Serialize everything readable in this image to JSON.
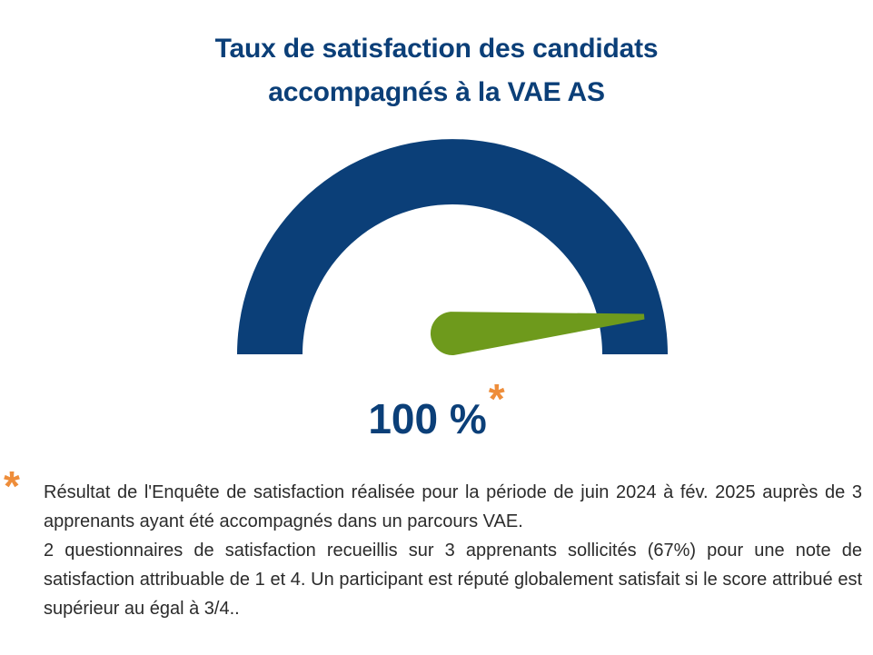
{
  "title": {
    "line1": "Taux de satisfaction des candidats",
    "line2": "accompagnés à la VAE AS"
  },
  "chart_data": {
    "type": "gauge",
    "value": 100,
    "min": 0,
    "max": 100,
    "unit": "%",
    "display_value": "100 %",
    "value_marker": "*",
    "colors": {
      "arc": "#0b3f78",
      "needle": "#6e9a1c",
      "asterisk": "#ee8d3a",
      "text": "#0b3f78"
    }
  },
  "footnote": {
    "marker": "*",
    "paragraph1": "Résultat de l'Enquête de satisfaction réalisée pour la période de juin 2024 à fév. 2025 auprès de 3 apprenants ayant été accompagnés dans un parcours VAE.",
    "paragraph2": "2 questionnaires de satisfaction recueillis sur 3 apprenants sollicités (67%) pour une note de satisfaction attribuable de 1 et 4. Un participant est réputé globalement satisfait si le score attribué est supérieur au égal à 3/4.."
  }
}
